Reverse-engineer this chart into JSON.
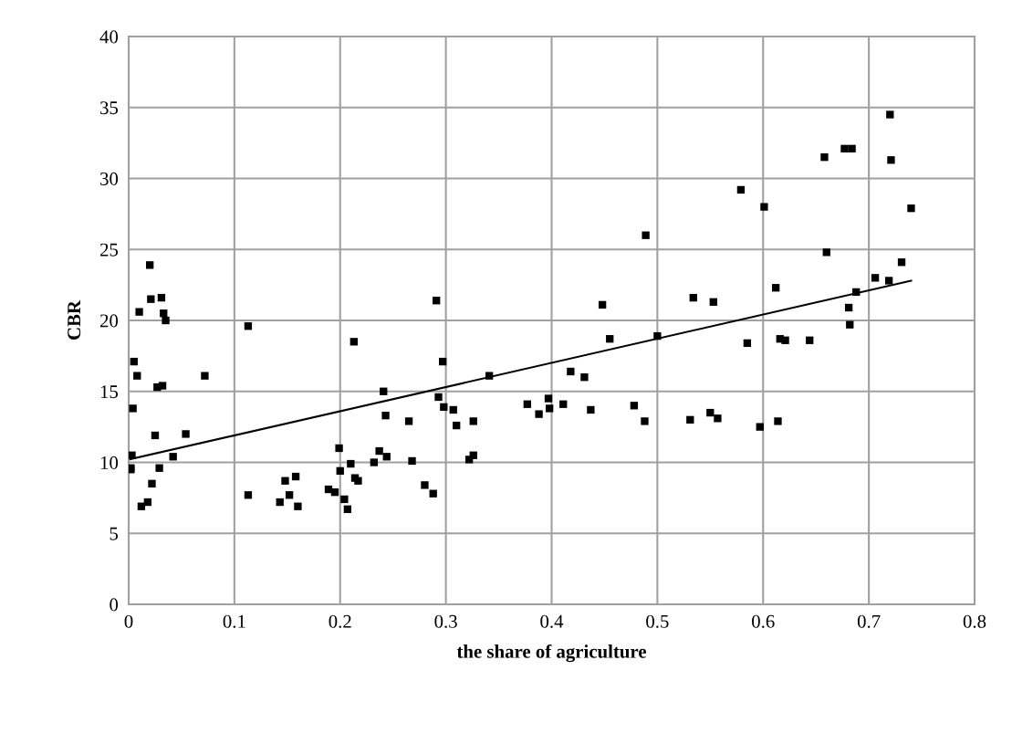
{
  "chart_data": {
    "type": "scatter",
    "xlabel": "the share of agriculture",
    "ylabel": "CBR",
    "xlim": [
      0,
      0.8
    ],
    "xticks": [
      0,
      0.1,
      0.2,
      0.3,
      0.4,
      0.5,
      0.6,
      0.7,
      0.8
    ],
    "ylim": [
      0,
      40
    ],
    "yticks": [
      0,
      5,
      10,
      15,
      20,
      25,
      30,
      35,
      40
    ],
    "grid": true,
    "marker": "square",
    "series": [
      {
        "color": "#000000",
        "x": [
          0.002,
          0.002,
          0.003,
          0.004,
          0.005,
          0.008,
          0.01,
          0.012,
          0.018,
          0.02,
          0.021,
          0.022,
          0.025,
          0.027,
          0.029,
          0.031,
          0.032,
          0.033,
          0.035,
          0.042,
          0.054,
          0.072,
          0.113,
          0.113,
          0.143,
          0.148,
          0.152,
          0.158,
          0.16,
          0.189,
          0.195,
          0.199,
          0.2,
          0.204,
          0.207,
          0.21,
          0.213,
          0.214,
          0.217,
          0.232,
          0.237,
          0.241,
          0.243,
          0.244,
          0.265,
          0.268,
          0.28,
          0.288,
          0.291,
          0.293,
          0.297,
          0.298,
          0.307,
          0.31,
          0.322,
          0.326,
          0.326,
          0.341,
          0.377,
          0.388,
          0.397,
          0.398,
          0.411,
          0.418,
          0.431,
          0.437,
          0.448,
          0.455,
          0.478,
          0.488,
          0.489,
          0.5,
          0.531,
          0.534,
          0.55,
          0.553,
          0.557,
          0.579,
          0.585,
          0.597,
          0.601,
          0.612,
          0.614,
          0.616,
          0.621,
          0.644,
          0.658,
          0.66,
          0.677,
          0.681,
          0.682,
          0.684,
          0.688,
          0.706,
          0.719,
          0.72,
          0.721,
          0.731,
          0.74
        ],
        "values": [
          9.5,
          9.6,
          10.5,
          13.8,
          17.1,
          16.1,
          20.6,
          6.9,
          7.2,
          23.9,
          21.5,
          8.5,
          11.9,
          15.3,
          9.6,
          21.6,
          15.4,
          20.5,
          20.0,
          10.4,
          12.0,
          16.1,
          19.6,
          7.7,
          7.2,
          8.7,
          7.7,
          9.0,
          6.9,
          8.1,
          7.9,
          11.0,
          9.4,
          7.4,
          6.7,
          9.9,
          18.5,
          8.9,
          8.7,
          10.0,
          10.8,
          15.0,
          13.3,
          10.4,
          12.9,
          10.1,
          8.4,
          7.8,
          21.4,
          14.6,
          17.1,
          13.9,
          13.7,
          12.6,
          10.2,
          12.9,
          10.5,
          16.1,
          14.1,
          13.4,
          14.5,
          13.8,
          14.1,
          16.4,
          16.0,
          13.7,
          21.1,
          18.7,
          14.0,
          12.9,
          26.0,
          18.9,
          13.0,
          21.6,
          13.5,
          21.3,
          13.1,
          29.2,
          18.4,
          12.5,
          28.0,
          22.3,
          12.9,
          18.7,
          18.6,
          18.6,
          31.5,
          24.8,
          32.1,
          20.9,
          19.7,
          32.1,
          22.0,
          23.0,
          22.8,
          34.5,
          31.3,
          24.1,
          27.9
        ]
      },
      {
        "type": "line",
        "color": "#000000",
        "marker": "none",
        "x": [
          0,
          0.74
        ],
        "values": [
          10.2,
          22.8
        ]
      }
    ]
  }
}
